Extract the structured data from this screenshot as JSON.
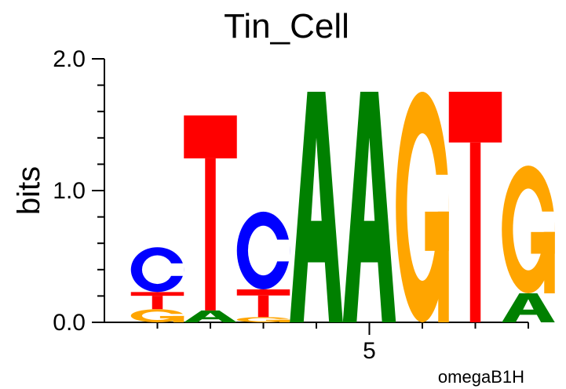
{
  "chart_data": {
    "type": "sequence-logo",
    "title": "Tin_Cell",
    "ylabel": "bits",
    "xlabel": "",
    "footer": "omegaB1H",
    "ylim": [
      0,
      2
    ],
    "y_ticks": [
      "0.0",
      "1.0",
      "2.0"
    ],
    "x_tick_labels": [
      {
        "position": 5,
        "label": "5"
      }
    ],
    "colors": {
      "A": "#008000",
      "C": "#0000ff",
      "G": "#ffa500",
      "T": "#ff0000"
    },
    "positions": [
      {
        "position": 1,
        "stack": [
          {
            "letter": "G",
            "height": 0.1
          },
          {
            "letter": "T",
            "height": 0.13
          },
          {
            "letter": "C",
            "height": 0.34
          }
        ]
      },
      {
        "position": 2,
        "stack": [
          {
            "letter": "A",
            "height": 0.09
          },
          {
            "letter": "T",
            "height": 1.48
          }
        ]
      },
      {
        "position": 3,
        "stack": [
          {
            "letter": "G",
            "height": 0.04
          },
          {
            "letter": "T",
            "height": 0.21
          },
          {
            "letter": "C",
            "height": 0.59
          }
        ]
      },
      {
        "position": 4,
        "stack": [
          {
            "letter": "A",
            "height": 1.75
          }
        ]
      },
      {
        "position": 5,
        "stack": [
          {
            "letter": "A",
            "height": 1.75
          }
        ]
      },
      {
        "position": 6,
        "stack": [
          {
            "letter": "G",
            "height": 1.75
          }
        ]
      },
      {
        "position": 7,
        "stack": [
          {
            "letter": "T",
            "height": 1.75
          }
        ]
      },
      {
        "position": 8,
        "stack": [
          {
            "letter": "A",
            "height": 0.22
          },
          {
            "letter": "G",
            "height": 0.97
          }
        ]
      }
    ]
  }
}
